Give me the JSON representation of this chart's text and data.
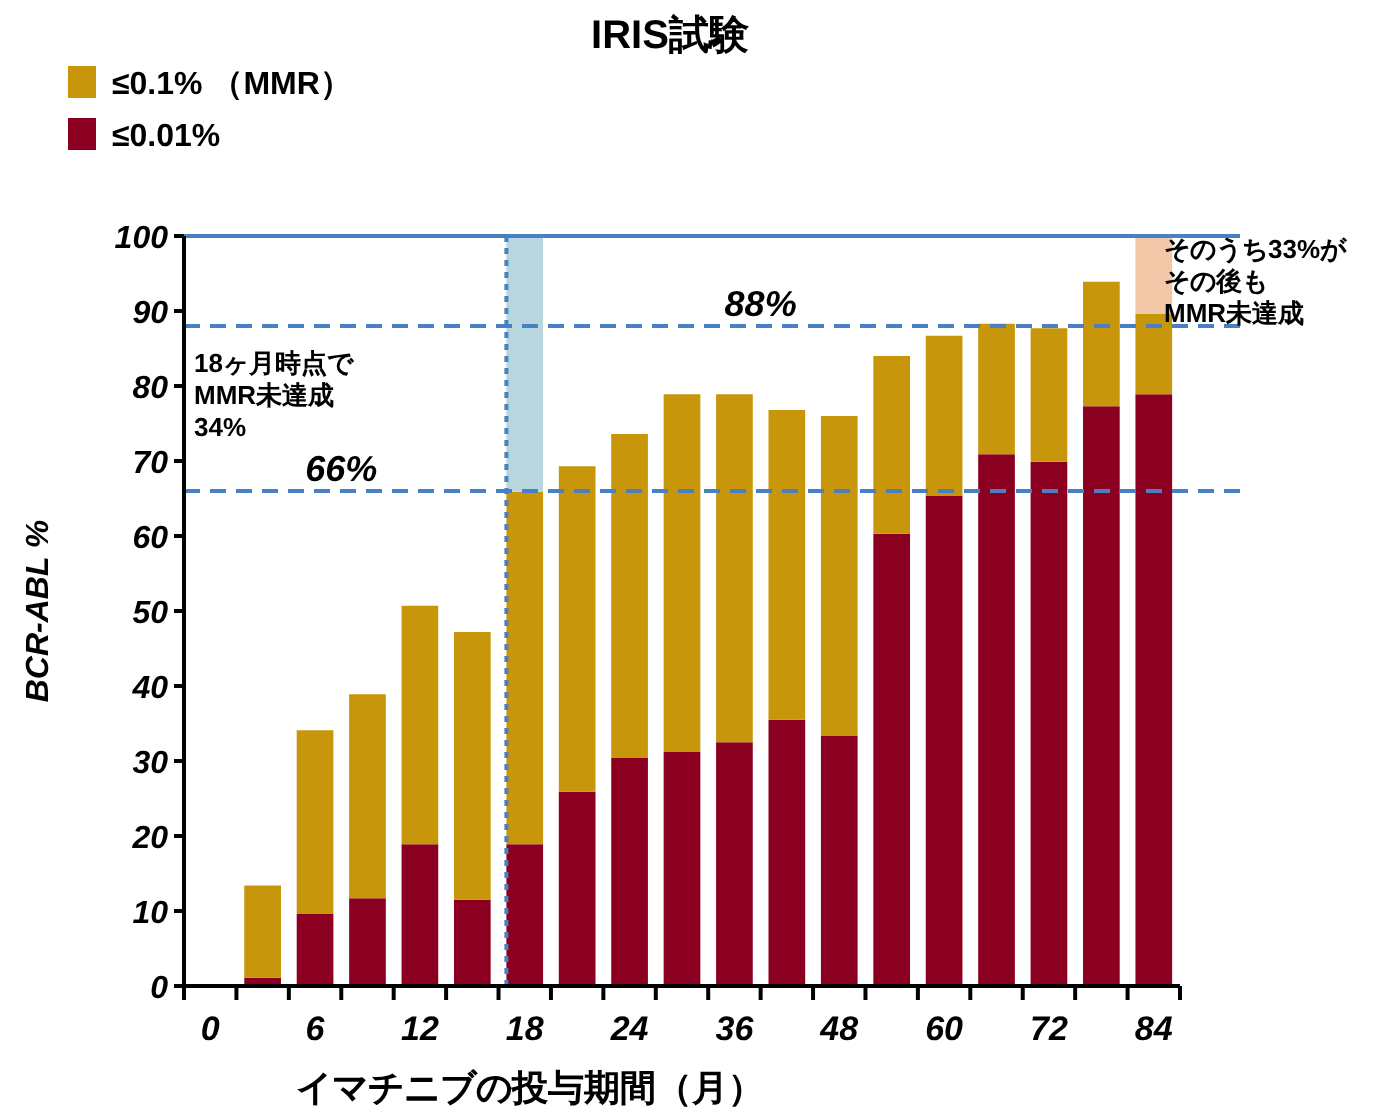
{
  "chart_data": {
    "type": "bar",
    "title": "IRIS試験",
    "xlabel": "イマチニブの投与期間（月）",
    "ylabel": "BCR-ABL %",
    "categories": [
      "0",
      null,
      "6",
      null,
      "12",
      null,
      "18",
      null,
      "24",
      null,
      "36",
      null,
      "48",
      null,
      "60",
      null,
      "72",
      null,
      "84"
    ],
    "stacked": true,
    "series": [
      {
        "name": "≤0.01%",
        "color": "#8b0020",
        "values": [
          null,
          1.1,
          9.6,
          11.7,
          18.9,
          11.5,
          18.9,
          25.9,
          30.4,
          31.2,
          32.5,
          35.5,
          33.4,
          60.3,
          65.4,
          70.9,
          69.9,
          77.3,
          78.9
        ]
      },
      {
        "name": "≤0.1% （MMR）",
        "color": "#c8960a",
        "values": [
          null,
          12.3,
          24.5,
          27.2,
          31.8,
          35.7,
          47.0,
          43.4,
          43.2,
          47.7,
          46.4,
          41.3,
          42.6,
          23.7,
          21.3,
          17.4,
          17.8,
          16.6,
          10.7
        ]
      },
      {
        "colors": [
          null,
          null,
          null,
          null,
          null,
          null,
          "#b8d6de",
          null,
          null,
          null,
          null,
          null,
          null,
          null,
          null,
          null,
          null,
          null,
          "#f3c8a8"
        ],
        "values": [
          null,
          null,
          null,
          null,
          null,
          null,
          34.1,
          null,
          null,
          null,
          null,
          null,
          null,
          null,
          null,
          null,
          null,
          null,
          10.4
        ]
      }
    ],
    "ylim": [
      0,
      100
    ],
    "yticks": [
      0,
      10,
      20,
      30,
      40,
      50,
      60,
      70,
      80,
      90,
      100
    ],
    "ref_lines": [
      {
        "axis": "y",
        "value": 100,
        "color": "#4a7fc1",
        "line_style": "solid"
      },
      {
        "axis": "y",
        "value": 88,
        "label": "88%",
        "color": "#4a7fc1",
        "line_style": "dashed"
      },
      {
        "axis": "y",
        "value": 66,
        "label": "66%",
        "color": "#4a7fc1",
        "line_style": "dashed"
      },
      {
        "axis": "x",
        "value": "18",
        "color": "#4a7fc1",
        "line_style": "dotted"
      }
    ],
    "annotations": [
      "18ヶ月時点で",
      "MMR未達成",
      "34%",
      "そのうち33%が",
      "その後も",
      "MMR未達成"
    ],
    "legend": "top left"
  }
}
